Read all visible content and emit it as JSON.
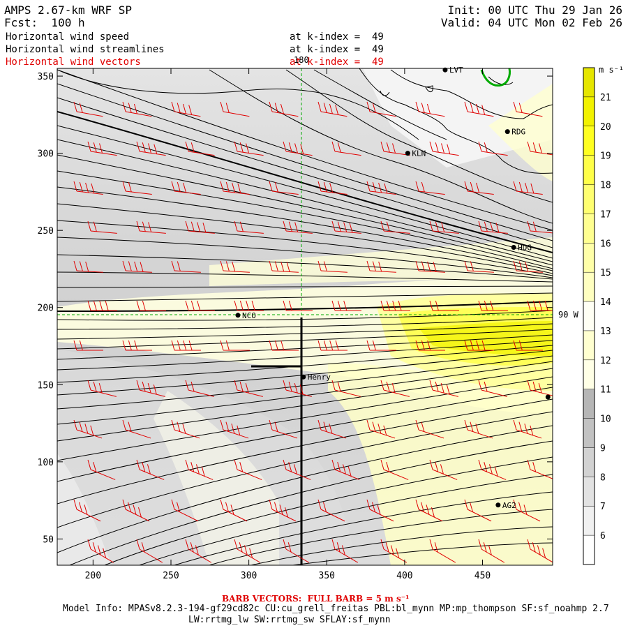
{
  "header": {
    "title": "AMPS 2.67-km WRF SP",
    "forecast": "Fcst:  100 h",
    "init": "Init: 00 UTC Thu 29 Jan 26",
    "valid": "Valid: 04 UTC Mon 02 Feb 26"
  },
  "fields": [
    {
      "name": "Horizontal wind speed",
      "level": "at k-index =  49",
      "color": "#000000"
    },
    {
      "name": "Horizontal wind streamlines",
      "level": "at k-index =  49",
      "color": "#000000"
    },
    {
      "name": "Horizontal wind vectors",
      "level": "at k-index =  49",
      "color": "#e00000"
    }
  ],
  "map": {
    "x_ticks": [
      200,
      250,
      300,
      350,
      400,
      450
    ],
    "y_ticks": [
      50,
      100,
      150,
      200,
      250,
      300,
      350
    ],
    "x_range": [
      177,
      495
    ],
    "y_range": [
      33,
      355
    ],
    "meridian_label": "180",
    "parallel_label": "90 W",
    "stations": [
      {
        "name": "LVT",
        "x": 426,
        "y": 354,
        "show_label": true
      },
      {
        "name": "RDG",
        "x": 466,
        "y": 314,
        "show_label": true
      },
      {
        "name": "KLN",
        "x": 402,
        "y": 300,
        "show_label": true
      },
      {
        "name": "NCO",
        "x": 293,
        "y": 195,
        "show_label": true
      },
      {
        "name": "HDG",
        "x": 470,
        "y": 239,
        "show_label": true
      },
      {
        "name": "Henry",
        "x": 335,
        "y": 155,
        "show_label": true
      },
      {
        "name": "AG2",
        "x": 460,
        "y": 72,
        "show_label": true
      },
      {
        "name": "edge-station",
        "x": 492,
        "y": 142,
        "show_label": false
      }
    ]
  },
  "colorbar": {
    "units": "m s⁻¹",
    "levels": [
      6,
      7,
      8,
      9,
      10,
      11,
      12,
      13,
      14,
      15,
      16,
      17,
      18,
      19,
      20,
      21
    ],
    "colors": [
      "#ffffff",
      "#f0f0f0",
      "#e2e2e2",
      "#d2d2d2",
      "#c2c2c2",
      "#b6b6b6",
      "#ffffe6",
      "#ffffd0",
      "#fffff4",
      "#ffffc0",
      "#ffffa8",
      "#ffff90",
      "#ffff70",
      "#ffff48",
      "#ffff20",
      "#f2f200",
      "#e6e600"
    ]
  },
  "footer": {
    "barb_note": "BARB VECTORS:  FULL BARB = 5 m s⁻¹",
    "model_info": "Model Info: MPASv8.2.3-194-gf29cd82c CU:cu_grell_freitas PBL:bl_mynn MP:mp_thompson SF:sf_noahmp 2.7",
    "model_info_2": "LW:rrtmg_lw SW:rrtmg_sw SFLAY:sf_mynn"
  }
}
